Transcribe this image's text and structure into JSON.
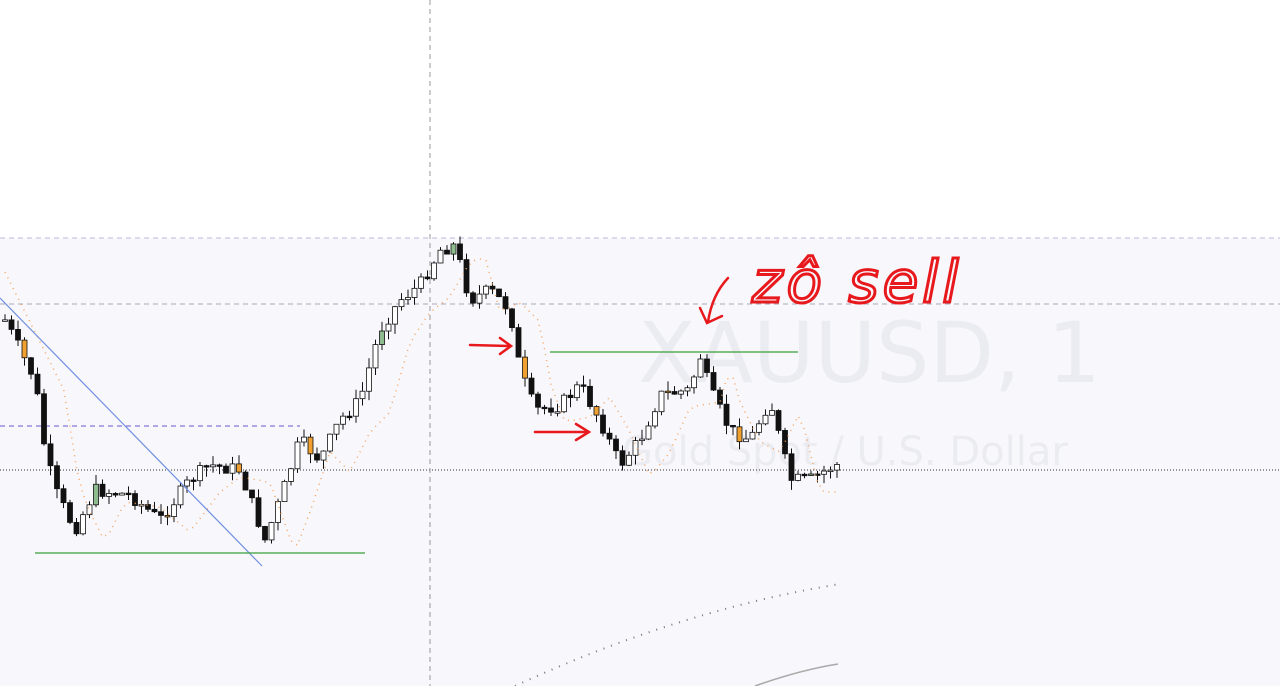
{
  "watermark": {
    "symbol": "XAUUSD, 1",
    "description": "Gold Spot / U.S. Dollar"
  },
  "annotation": {
    "text": "zô sell"
  }
}
